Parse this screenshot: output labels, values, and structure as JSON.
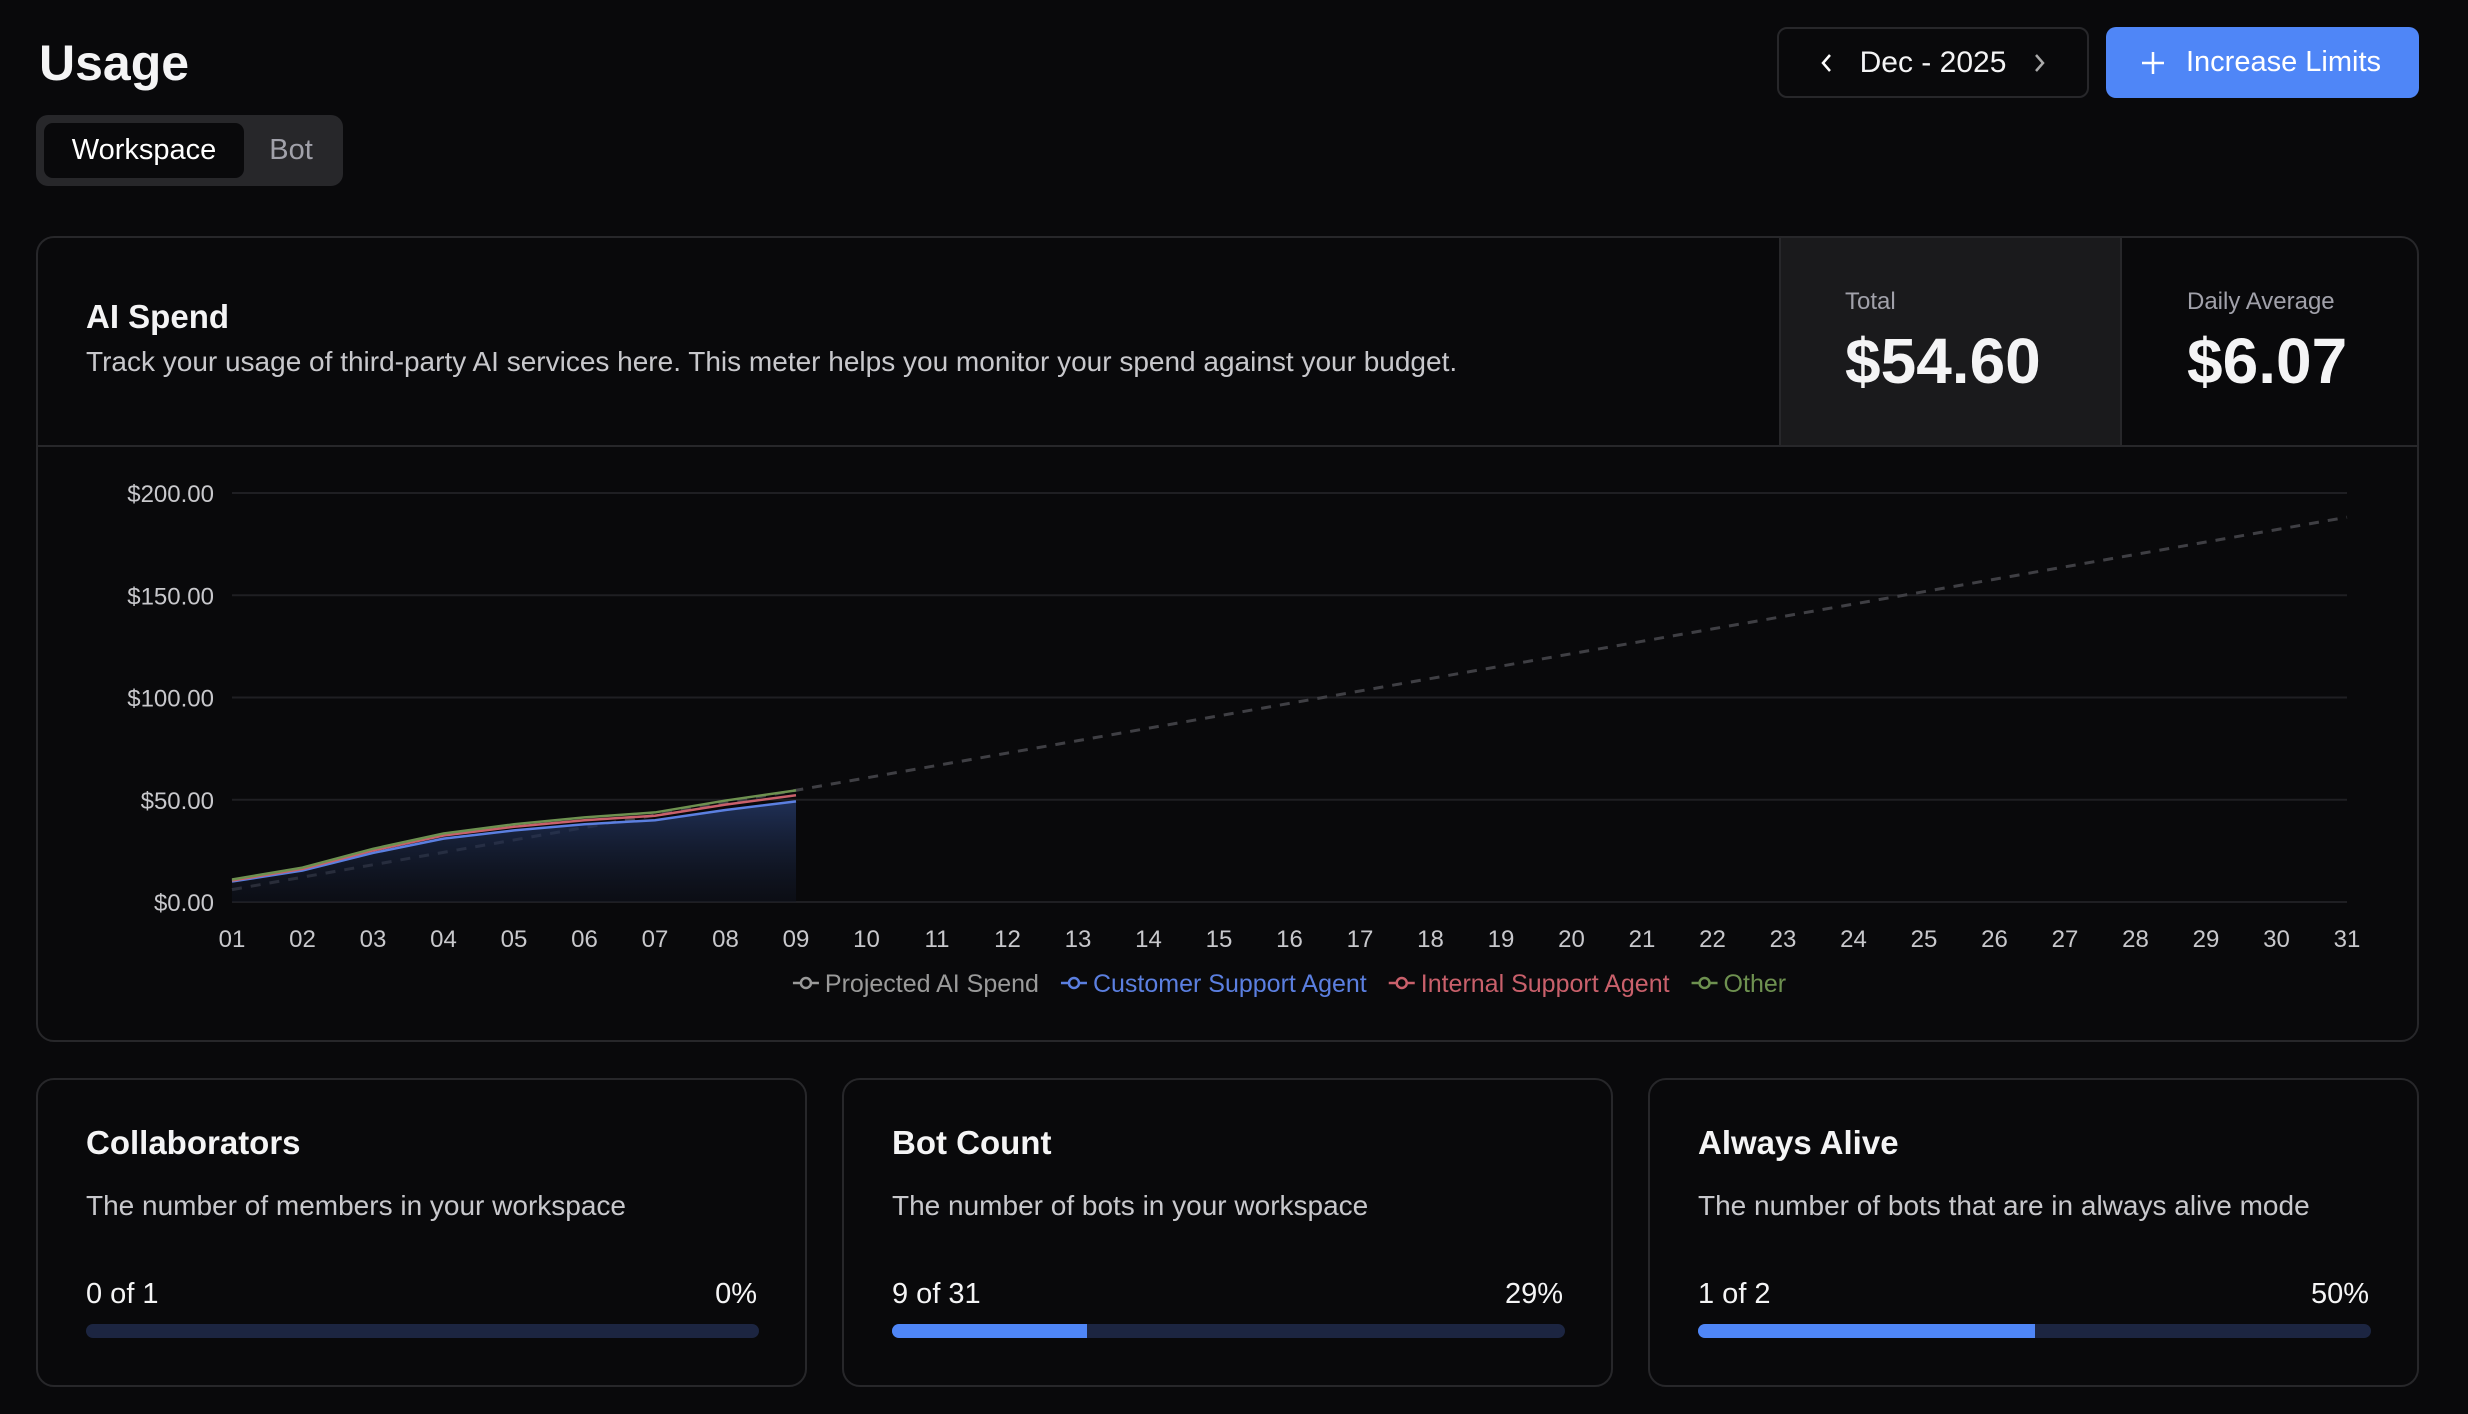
{
  "header": {
    "title": "Usage",
    "month": "Dec - 2025",
    "button": "Increase Limits"
  },
  "tabs": [
    "Workspace",
    "Bot"
  ],
  "ai_spend": {
    "title": "AI Spend",
    "description": "Track your usage of third-party AI services here. This meter helps you monitor your spend against your budget.",
    "total_label": "Total",
    "total": "$54.60",
    "average_label": "Daily Average",
    "average": "$6.07"
  },
  "chart_data": {
    "type": "area",
    "categories": [
      "01",
      "02",
      "03",
      "04",
      "05",
      "06",
      "07",
      "08",
      "09",
      "10",
      "11",
      "12",
      "13",
      "14",
      "15",
      "16",
      "17",
      "18",
      "19",
      "20",
      "21",
      "22",
      "23",
      "24",
      "25",
      "26",
      "27",
      "28",
      "29",
      "30",
      "31"
    ],
    "series": [
      {
        "name": "Projected AI Spend",
        "color": "#9a9a9a",
        "line_color": "#3f3f44",
        "dash": true,
        "values": [
          6.07,
          12.14,
          18.21,
          24.28,
          30.35,
          36.42,
          42.49,
          48.56,
          54.63,
          60.7,
          66.77,
          72.84,
          78.91,
          84.98,
          91.05,
          97.12,
          103.19,
          109.26,
          115.33,
          121.4,
          127.47,
          133.54,
          139.61,
          145.68,
          151.75,
          157.82,
          163.89,
          169.96,
          176.03,
          182.1,
          188.17
        ]
      },
      {
        "name": "Customer Support Agent",
        "color": "#5b7fe0",
        "values": [
          10,
          15.4,
          24,
          31,
          35,
          38,
          40,
          45,
          49.2,
          null,
          null,
          null,
          null,
          null,
          null,
          null,
          null,
          null,
          null,
          null,
          null,
          null,
          null,
          null,
          null,
          null,
          null,
          null,
          null,
          null,
          null
        ]
      },
      {
        "name": "Internal Support Agent",
        "color": "#c9606b",
        "values": [
          0.5,
          0.8,
          1.2,
          1.5,
          1.8,
          2,
          2.2,
          2.6,
          3,
          null,
          null,
          null,
          null,
          null,
          null,
          null,
          null,
          null,
          null,
          null,
          null,
          null,
          null,
          null,
          null,
          null,
          null,
          null,
          null,
          null,
          null
        ]
      },
      {
        "name": "Other",
        "color": "#6e9150",
        "values": [
          0.5,
          0.6,
          0.8,
          1,
          1.2,
          1.4,
          1.6,
          2,
          2.4,
          null,
          null,
          null,
          null,
          null,
          null,
          null,
          null,
          null,
          null,
          null,
          null,
          null,
          null,
          null,
          null,
          null,
          null,
          null,
          null,
          null,
          null
        ]
      }
    ],
    "ylim": [
      0,
      200
    ],
    "yticks": [
      {
        "value": 0,
        "label": "$0.00"
      },
      {
        "value": 50,
        "label": "$50.00"
      },
      {
        "value": 100,
        "label": "$100.00"
      },
      {
        "value": 150,
        "label": "$150.00"
      },
      {
        "value": 200,
        "label": "$200.00"
      }
    ],
    "grid": true,
    "legend": "bottom"
  },
  "cards": [
    {
      "title": "Collaborators",
      "description": "The number of members in your workspace",
      "count": "0 of 1",
      "progress": {
        "value": 0,
        "label": "0%"
      }
    },
    {
      "title": "Bot Count",
      "description": "The number of bots in your workspace",
      "count": "9 of 31",
      "progress": {
        "value": 29,
        "label": "29%"
      }
    },
    {
      "title": "Always Alive",
      "description": "The number of bots that are in always alive mode",
      "count": "1 of 2",
      "progress": {
        "value": 50,
        "label": "50%"
      }
    }
  ]
}
